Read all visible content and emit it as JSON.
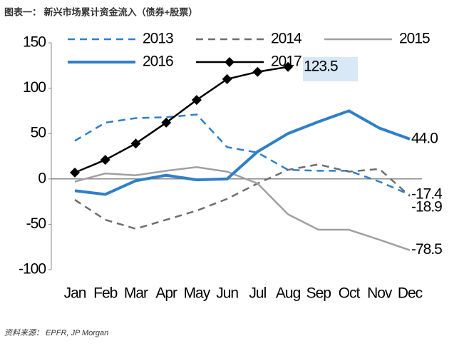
{
  "chart_data": {
    "type": "line",
    "title": "图表一： 新兴市场累计资金流入（债券+股票）",
    "source": "资料来源： EPFR, JP Morgan",
    "categories": [
      "Jan",
      "Feb",
      "Mar",
      "Apr",
      "May",
      "Jun",
      "Jul",
      "Aug",
      "Sep",
      "Oct",
      "Nov",
      "Dec"
    ],
    "ylim": [
      -100,
      150
    ],
    "yticks": [
      -100,
      -50,
      0,
      50,
      100,
      150
    ],
    "series": [
      {
        "name": "2013",
        "color": "#2f7fc8",
        "dash": "dashed",
        "width": 2.5,
        "values": [
          42,
          62,
          67,
          68,
          71,
          35,
          29,
          10,
          9,
          9,
          -3,
          -17.4
        ],
        "value_labels": [
          null,
          null,
          null,
          null,
          null,
          null,
          null,
          null,
          null,
          null,
          null,
          "-17.4"
        ]
      },
      {
        "name": "2014",
        "color": "#6e6e6e",
        "dash": "dashed",
        "width": 2.5,
        "values": [
          -23,
          -45,
          -55,
          -45,
          -35,
          -22,
          -5,
          10,
          16,
          8,
          11,
          -18.9
        ],
        "value_labels": [
          null,
          null,
          null,
          null,
          null,
          null,
          null,
          null,
          null,
          null,
          null,
          "-18.9"
        ]
      },
      {
        "name": "2015",
        "color": "#a0a0a0",
        "dash": "solid",
        "width": 2.5,
        "values": [
          -3,
          6,
          4,
          9,
          13,
          8,
          -5,
          -39,
          -56,
          -56,
          -67,
          -78.5
        ],
        "value_labels": [
          null,
          null,
          null,
          null,
          null,
          null,
          null,
          null,
          null,
          null,
          null,
          "-78.5"
        ]
      },
      {
        "name": "2016",
        "color": "#2f7fc8",
        "dash": "solid",
        "width": 4,
        "values": [
          -13,
          -17,
          -2,
          4,
          -1,
          0,
          30,
          50,
          63,
          75,
          56,
          44
        ],
        "value_labels": [
          null,
          null,
          null,
          null,
          null,
          null,
          null,
          null,
          null,
          null,
          null,
          "44.0"
        ]
      },
      {
        "name": "2017",
        "color": "#000000",
        "dash": "solid",
        "width": 2.5,
        "marker": "diamond",
        "values": [
          7,
          21,
          39,
          62,
          87,
          110,
          118,
          123.5,
          null,
          null,
          null,
          null
        ],
        "value_labels": [
          null,
          null,
          null,
          null,
          null,
          null,
          null,
          "123.5",
          null,
          null,
          null,
          null
        ]
      }
    ]
  }
}
